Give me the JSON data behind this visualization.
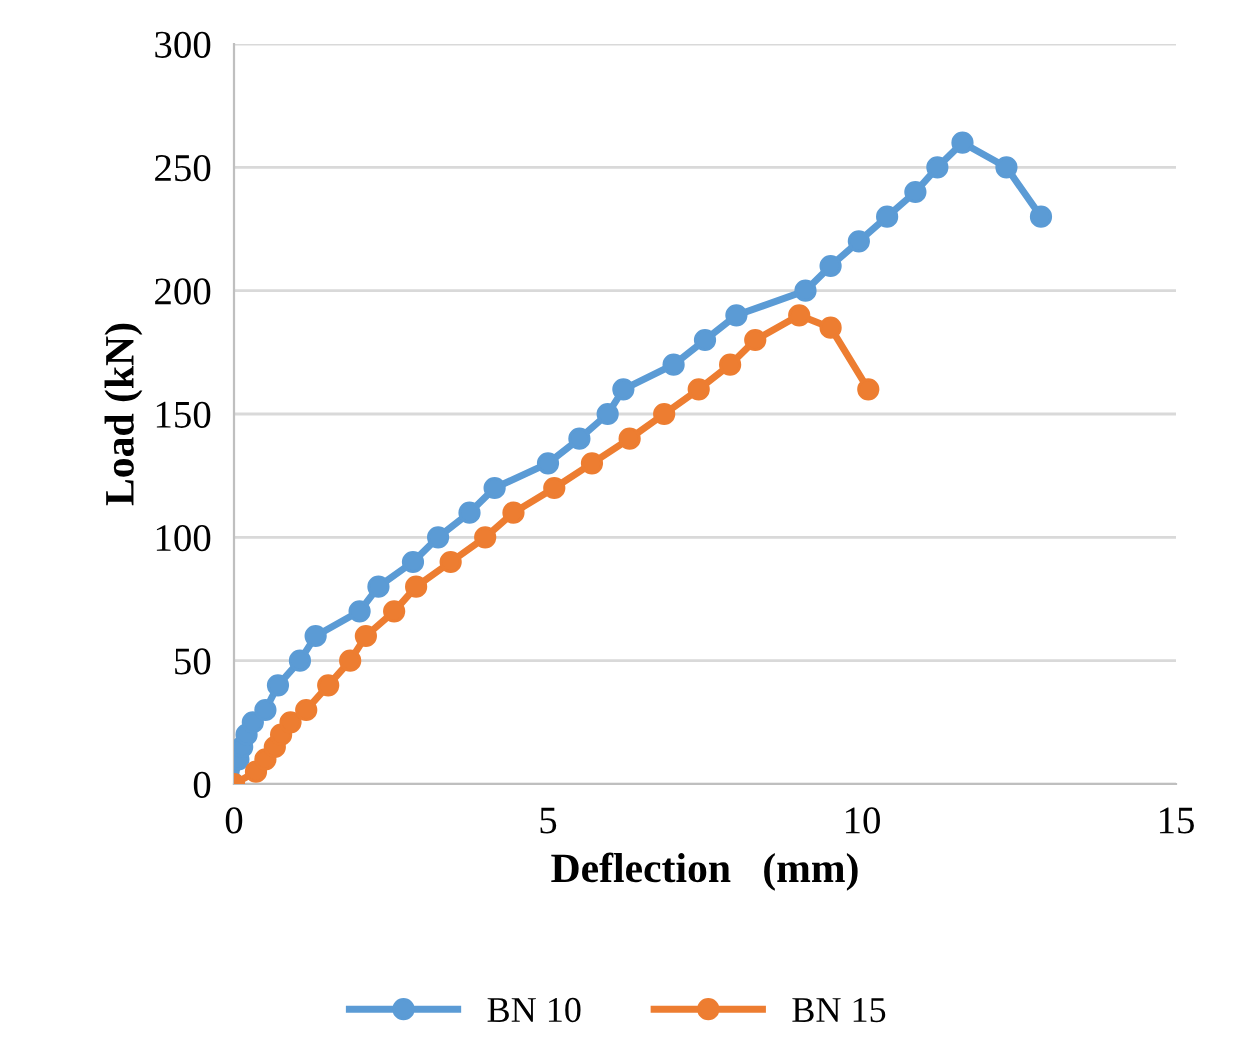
{
  "chart_data": {
    "type": "line",
    "xlabel": "Deflection   (mm)",
    "ylabel": "Load (kN)",
    "xlim": [
      0,
      15
    ],
    "ylim": [
      0,
      300
    ],
    "xticks": [
      0,
      5,
      10,
      15
    ],
    "yticks": [
      0,
      50,
      100,
      150,
      200,
      250,
      300
    ],
    "grid": "y",
    "legend": "bottom",
    "marker": "circle",
    "line_style": "solid",
    "series": [
      {
        "name": "BN 10",
        "color": "#5b9bd5",
        "x": [
          0,
          0.07,
          0.13,
          0.2,
          0.3,
          0.5,
          0.7,
          1.05,
          1.3,
          2.0,
          2.3,
          2.85,
          3.25,
          3.75,
          4.15,
          5.0,
          5.5,
          5.95,
          6.2,
          7.0,
          7.5,
          8.0,
          9.1,
          9.5,
          9.95,
          10.4,
          10.85,
          11.2,
          11.6,
          12.3,
          12.85
        ],
        "values": [
          0,
          10,
          15,
          20,
          25,
          30,
          40,
          50,
          60,
          70,
          80,
          90,
          100,
          110,
          120,
          130,
          140,
          150,
          160,
          170,
          180,
          190,
          200,
          210,
          220,
          230,
          240,
          250,
          260,
          250,
          230
        ]
      },
      {
        "name": "BN 15",
        "color": "#ed7d31",
        "x": [
          0,
          0.35,
          0.5,
          0.65,
          0.75,
          0.9,
          1.15,
          1.5,
          1.85,
          2.1,
          2.55,
          2.9,
          3.45,
          4.0,
          4.45,
          5.1,
          5.7,
          6.3,
          6.85,
          7.4,
          7.9,
          8.3,
          9.0,
          9.5,
          10.1
        ],
        "values": [
          0,
          5,
          10,
          15,
          20,
          25,
          30,
          40,
          50,
          60,
          70,
          80,
          90,
          100,
          110,
          120,
          130,
          140,
          150,
          160,
          170,
          180,
          190,
          185,
          160
        ]
      }
    ]
  }
}
